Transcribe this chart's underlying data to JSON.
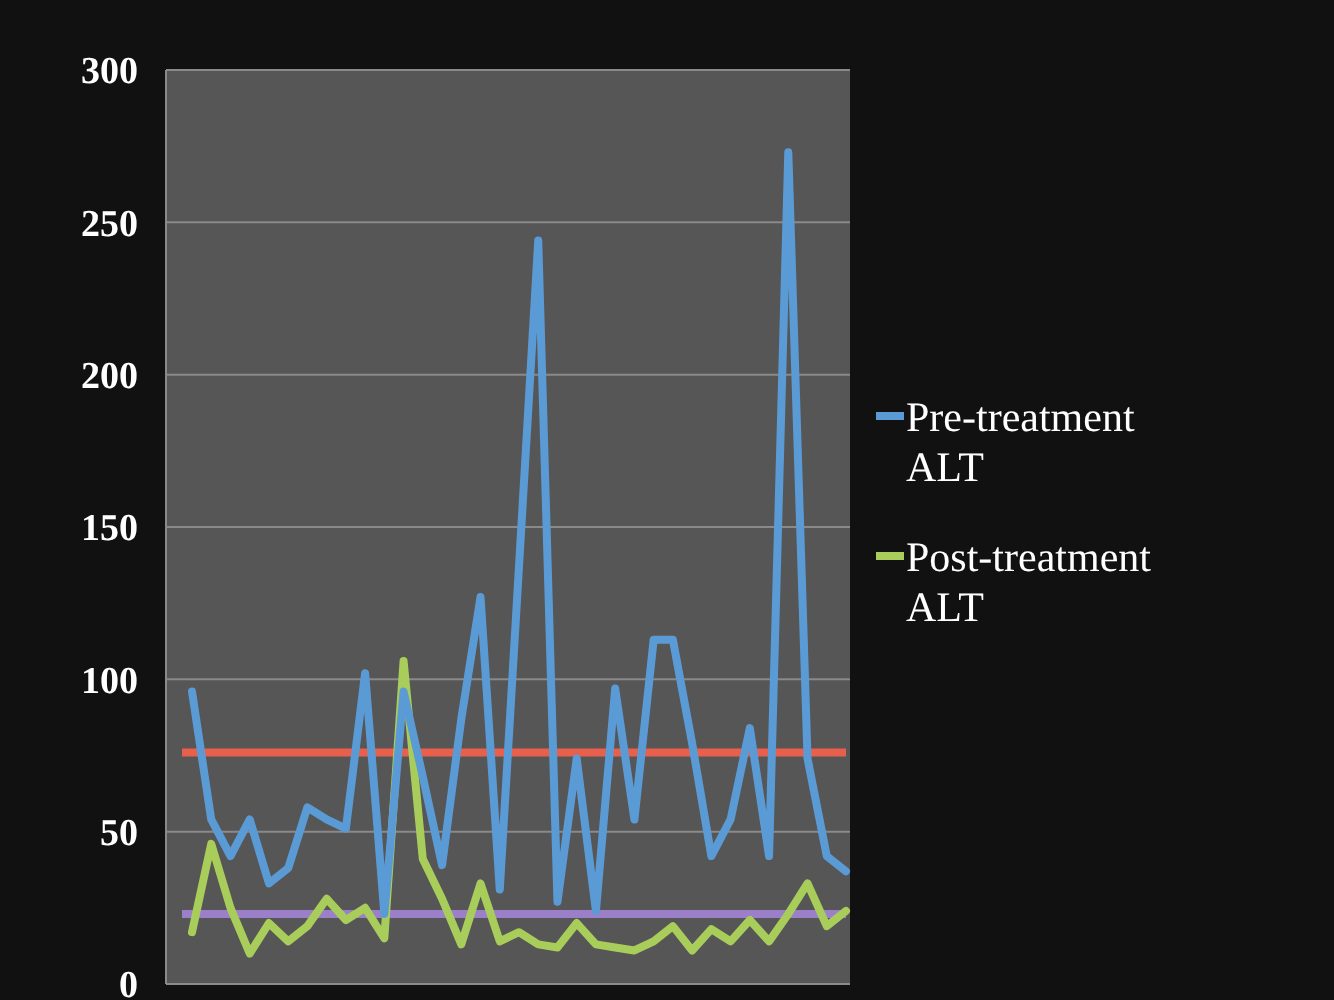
{
  "chart_data": {
    "type": "line",
    "categories": [
      null,
      null,
      null,
      null,
      null,
      null,
      null,
      null,
      null,
      null,
      null,
      null,
      null,
      null,
      null,
      null,
      null,
      null,
      null,
      null,
      null,
      null,
      null,
      null,
      null,
      null,
      null,
      null,
      null,
      null,
      null,
      null,
      null,
      null,
      null
    ],
    "series": [
      {
        "name": "Pre-treatment ALT",
        "color": "#5b9bd5",
        "values": [
          96,
          54,
          42,
          54,
          33,
          38,
          58,
          54,
          51,
          102,
          23,
          96,
          68,
          39,
          87,
          127,
          31,
          137,
          244,
          27,
          74,
          24,
          97,
          54,
          113,
          113,
          79,
          42,
          54,
          84,
          42,
          273,
          74,
          42,
          37
        ]
      },
      {
        "name": "Post-treatment ALT",
        "color": "#a9cd5a",
        "values": [
          17,
          46,
          25,
          10,
          20,
          14,
          19,
          28,
          21,
          25,
          15,
          106,
          41,
          28,
          13,
          33,
          14,
          17,
          13,
          12,
          20,
          13,
          12,
          11,
          14,
          19,
          11,
          18,
          14,
          21,
          14,
          23,
          33,
          19,
          24
        ]
      }
    ],
    "ref_lines": [
      {
        "axis": "y",
        "value": 76,
        "color": "#e8604c"
      },
      {
        "axis": "y",
        "value": 23,
        "color": "#9b7fc8"
      }
    ],
    "ylim": [
      0,
      300
    ],
    "yticks": [
      0,
      50,
      100,
      150,
      200,
      250,
      300
    ],
    "grid": "y",
    "legend": "right",
    "marker": "none",
    "line_style": "solid"
  }
}
